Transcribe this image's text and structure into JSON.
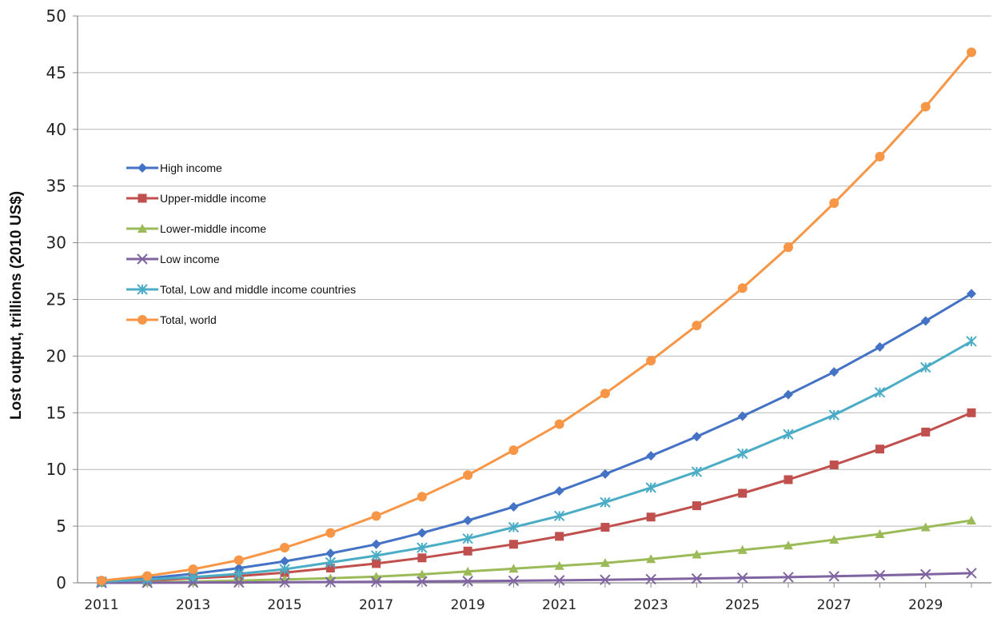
{
  "chart_data": {
    "type": "line",
    "title": "",
    "xlabel": "",
    "ylabel": "Lost output, trillions (2010 US$)",
    "x": [
      2011,
      2012,
      2013,
      2014,
      2015,
      2016,
      2017,
      2018,
      2019,
      2020,
      2021,
      2022,
      2023,
      2024,
      2025,
      2026,
      2027,
      2028,
      2029,
      2030
    ],
    "x_tick_labels": [
      "2011",
      "2013",
      "2015",
      "2017",
      "2019",
      "2021",
      "2023",
      "2025",
      "2027",
      "2029"
    ],
    "ylim": [
      0,
      50
    ],
    "y_ticks": [
      0,
      5,
      10,
      15,
      20,
      25,
      30,
      35,
      40,
      45,
      50
    ],
    "grid": "horizontal",
    "legend_position": "upper-left",
    "series": [
      {
        "name": "High income",
        "color": "#4472C4",
        "marker": "diamond",
        "values": [
          0.1,
          0.4,
          0.8,
          1.3,
          1.9,
          2.6,
          3.4,
          4.4,
          5.5,
          6.7,
          8.1,
          9.6,
          11.2,
          12.9,
          14.7,
          16.6,
          18.6,
          20.8,
          23.1,
          25.5
        ]
      },
      {
        "name": "Upper-middle income",
        "color": "#C0504D",
        "marker": "square",
        "values": [
          0.05,
          0.2,
          0.4,
          0.6,
          0.9,
          1.3,
          1.7,
          2.2,
          2.8,
          3.4,
          4.1,
          4.9,
          5.8,
          6.8,
          7.9,
          9.1,
          10.4,
          11.8,
          13.3,
          15.0
        ]
      },
      {
        "name": "Lower-middle income",
        "color": "#9BBB59",
        "marker": "triangle",
        "values": [
          0.02,
          0.05,
          0.1,
          0.2,
          0.3,
          0.4,
          0.55,
          0.75,
          1.0,
          1.25,
          1.5,
          1.75,
          2.1,
          2.5,
          2.9,
          3.3,
          3.8,
          4.3,
          4.9,
          5.5
        ]
      },
      {
        "name": "Low income",
        "color": "#8064A2",
        "marker": "x",
        "values": [
          0.0,
          0.01,
          0.02,
          0.03,
          0.05,
          0.07,
          0.09,
          0.12,
          0.15,
          0.18,
          0.22,
          0.27,
          0.32,
          0.38,
          0.44,
          0.5,
          0.58,
          0.66,
          0.75,
          0.85
        ]
      },
      {
        "name": "Total, Low and middle income countries",
        "color": "#4BACC6",
        "marker": "star",
        "values": [
          0.1,
          0.3,
          0.5,
          0.8,
          1.2,
          1.8,
          2.4,
          3.1,
          3.9,
          4.9,
          5.9,
          7.1,
          8.4,
          9.8,
          11.4,
          13.1,
          14.8,
          16.8,
          19.0,
          21.3
        ]
      },
      {
        "name": "Total, world",
        "color": "#F79646",
        "marker": "circle",
        "values": [
          0.2,
          0.6,
          1.2,
          2.0,
          3.1,
          4.4,
          5.9,
          7.6,
          9.5,
          11.7,
          14.0,
          16.7,
          19.6,
          22.7,
          26.0,
          29.6,
          33.5,
          37.6,
          42.0,
          46.8
        ]
      }
    ]
  }
}
